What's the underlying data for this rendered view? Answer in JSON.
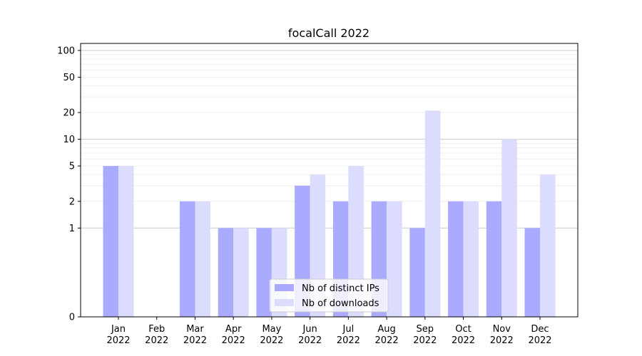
{
  "chart_data": {
    "type": "bar",
    "title": "focalCall 2022",
    "xlabel": "",
    "ylabel": "",
    "yscale": "symlog",
    "ylim": [
      0,
      120
    ],
    "yticks": [
      0,
      1,
      2,
      5,
      10,
      20,
      50,
      100
    ],
    "categories": [
      [
        "Jan",
        "2022"
      ],
      [
        "Feb",
        "2022"
      ],
      [
        "Mar",
        "2022"
      ],
      [
        "Apr",
        "2022"
      ],
      [
        "May",
        "2022"
      ],
      [
        "Jun",
        "2022"
      ],
      [
        "Jul",
        "2022"
      ],
      [
        "Aug",
        "2022"
      ],
      [
        "Sep",
        "2022"
      ],
      [
        "Oct",
        "2022"
      ],
      [
        "Nov",
        "2022"
      ],
      [
        "Dec",
        "2022"
      ]
    ],
    "series": [
      {
        "name": "Nb of distinct IPs",
        "color": "#aaaaff",
        "values": [
          5,
          0,
          2,
          1,
          1,
          3,
          2,
          2,
          1,
          2,
          2,
          1
        ]
      },
      {
        "name": "Nb of downloads",
        "color": "#dcdcff",
        "values": [
          5,
          0,
          2,
          1,
          1,
          4,
          5,
          2,
          21,
          2,
          10,
          4
        ]
      }
    ],
    "grid": true,
    "legend_position": "bottom-center"
  }
}
